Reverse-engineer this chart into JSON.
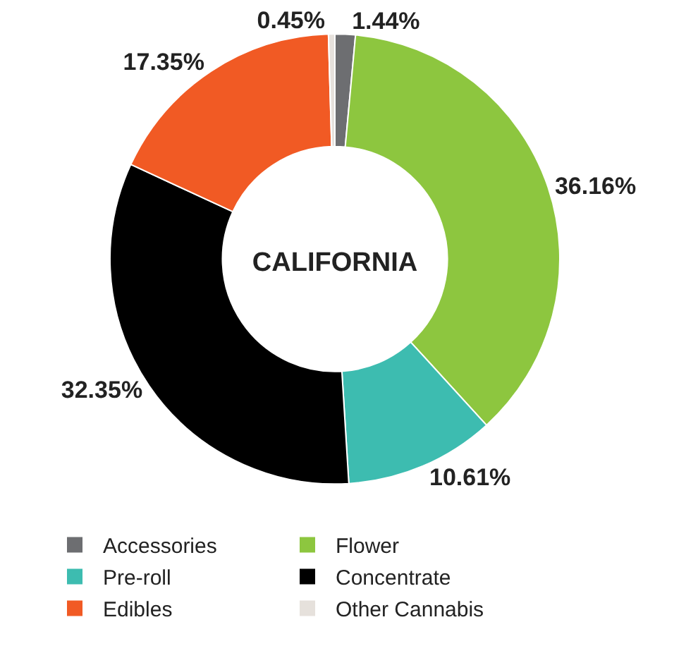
{
  "chart_data": {
    "type": "donut",
    "title": "CALIFORNIA",
    "categories": [
      "Accessories",
      "Flower",
      "Pre-roll",
      "Concentrate",
      "Edibles",
      "Other Cannabis"
    ],
    "values": [
      1.44,
      36.16,
      10.61,
      32.35,
      17.35,
      0.45
    ],
    "value_labels": [
      "1.44%",
      "36.16%",
      "10.61%",
      "32.35%",
      "17.35%",
      "0.45%"
    ],
    "colors": [
      "#6d6e71",
      "#8dc63f",
      "#3dbcb0",
      "#000000",
      "#f15a24",
      "#e6e1dc"
    ],
    "legend": "bottom"
  }
}
